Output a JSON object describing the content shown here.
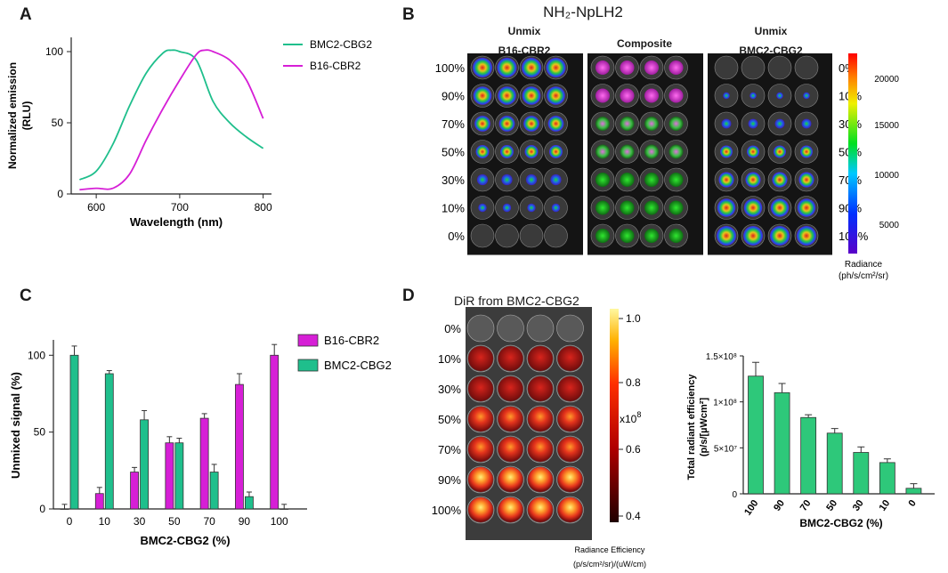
{
  "panels": {
    "a": {
      "letter": "A",
      "chart_data": {
        "type": "line",
        "xlabel": "Wavelength (nm)",
        "ylabel_line1": "Normalized emission",
        "ylabel_line2": "(RLU)",
        "xlim": [
          570,
          810
        ],
        "ylim": [
          0,
          110
        ],
        "xticks": [
          600,
          700,
          800
        ],
        "yticks": [
          0,
          50,
          100
        ],
        "series": [
          {
            "name": "BMC2-CBG2",
            "color": "#1fbf8c",
            "x": [
              580,
              600,
              620,
              640,
              660,
              680,
              690,
              700,
              720,
              740,
              760,
              780,
              800
            ],
            "y": [
              10,
              16,
              35,
              62,
              85,
              99,
              101,
              100,
              94,
              65,
              50,
              40,
              32
            ]
          },
          {
            "name": "B16-CBR2",
            "color": "#d61fd6",
            "x": [
              580,
              600,
              620,
              640,
              660,
              680,
              700,
              720,
              730,
              740,
              760,
              780,
              800
            ],
            "y": [
              3,
              4,
              4,
              14,
              38,
              60,
              80,
              98,
              101,
              100,
              94,
              80,
              53
            ]
          }
        ]
      }
    },
    "b": {
      "letter": "B",
      "title": "NH₂-NpLH2",
      "col1_line1": "Unmix",
      "col1_line2": "B16-CBR2",
      "col2": "Composite",
      "col3_line1": "Unmix",
      "col3_line2": "BMC2-CBG2",
      "left_labels": [
        "100%",
        "90%",
        "70%",
        "50%",
        "30%",
        "10%",
        "0%"
      ],
      "right_labels": [
        "0%",
        "10%",
        "30%",
        "50%",
        "70%",
        "90%",
        "100%"
      ],
      "colorbar_ticks": [
        "20000",
        "15000",
        "10000",
        "5000"
      ],
      "colorbar_label_line1": "Radiance",
      "colorbar_label_line2": "(ph/s/cm²/sr)"
    },
    "c": {
      "letter": "C",
      "chart_data": {
        "type": "bar",
        "categories": [
          "0",
          "10",
          "30",
          "50",
          "70",
          "90",
          "100"
        ],
        "xlabel": "BMC2-CBG2 (%)",
        "ylabel": "Unmixed signal (%)",
        "ylim": [
          0,
          110
        ],
        "yticks": [
          0,
          50,
          100
        ],
        "series": [
          {
            "name": "B16-CBR2",
            "color": "#d61fd6",
            "values": [
              0,
              10,
              24,
              43,
              59,
              81,
              100
            ],
            "errors": [
              3,
              4,
              3,
              4,
              3,
              7,
              7
            ]
          },
          {
            "name": "BMC2-CBG2",
            "color": "#1fbf8c",
            "values": [
              100,
              88,
              58,
              43,
              24,
              8,
              0
            ],
            "errors": [
              6,
              2,
              6,
              3,
              5,
              3,
              3
            ]
          }
        ]
      }
    },
    "d": {
      "letter": "D",
      "image_title": "DiR from BMC2-CBG2",
      "row_labels": [
        "0%",
        "10%",
        "30%",
        "50%",
        "70%",
        "90%",
        "100%"
      ],
      "colorbar_ticks": [
        "1.0",
        "0.8",
        "0.6",
        "0.4"
      ],
      "colorbar_multiplier": "x10",
      "colorbar_exponent": "8",
      "colorbar_label_line1": "Radiance Efficiency",
      "colorbar_label_line2": "(p/s/cm²/sr)/(uW/cm)",
      "chart_data": {
        "type": "bar",
        "categories": [
          "100",
          "90",
          "70",
          "50",
          "30",
          "10",
          "0"
        ],
        "values": [
          128000000.0,
          110000000.0,
          83000000.0,
          66000000.0,
          45000000.0,
          34000000.0,
          6000000.0
        ],
        "errors": [
          15000000.0,
          10000000.0,
          3000000.0,
          5000000.0,
          6000000.0,
          4000000.0,
          5000000.0
        ],
        "color": "#2ec87a",
        "xlabel": "BMC2-CBG2 (%)",
        "ylabel_line1": "Total radiant efficiency",
        "ylabel_line2": "(p/s/[µWcm²]",
        "ylim": [
          0,
          150000000.0
        ],
        "ytick_labels": [
          "0",
          "5×10⁷",
          "1×10⁸",
          "1.5×10⁸"
        ]
      }
    }
  }
}
